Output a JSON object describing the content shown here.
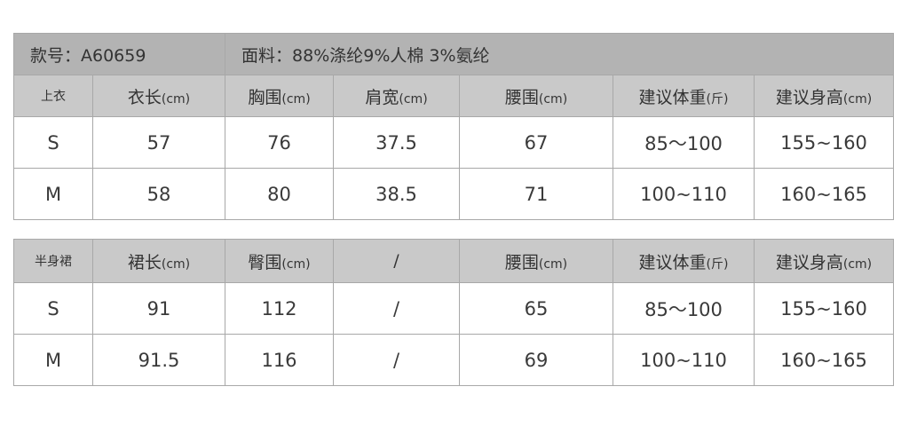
{
  "style_no": "款号：A60659",
  "fabric": "面料：88%涤纶9%人棉 3%氨纶",
  "top": {
    "label": "上衣",
    "headers": [
      {
        "name": "衣长",
        "unit": "(cm)"
      },
      {
        "name": "胸围",
        "unit": "(cm)"
      },
      {
        "name": "肩宽",
        "unit": "(cm)"
      },
      {
        "name": "腰围",
        "unit": "(cm)"
      },
      {
        "name": "建议体重",
        "unit": "(斤)"
      },
      {
        "name": "建议身高",
        "unit": "(cm)"
      }
    ],
    "rows": [
      [
        "S",
        "57",
        "76",
        "37.5",
        "67",
        "85～100",
        "155~160"
      ],
      [
        "M",
        "58",
        "80",
        "38.5",
        "71",
        "100~110",
        "160~165"
      ]
    ]
  },
  "skirt": {
    "label": "半身裙",
    "headers": [
      {
        "name": "裙长",
        "unit": "(cm)"
      },
      {
        "name": "臀围",
        "unit": "(cm)"
      },
      {
        "name": "/",
        "unit": ""
      },
      {
        "name": "腰围",
        "unit": "(cm)"
      },
      {
        "name": "建议体重",
        "unit": "(斤)"
      },
      {
        "name": "建议身高",
        "unit": "(cm)"
      }
    ],
    "rows": [
      [
        "S",
        "91",
        "112",
        "/",
        "65",
        "85～100",
        "155~160"
      ],
      [
        "M",
        "91.5",
        "116",
        "/",
        "69",
        "100~110",
        "160~165"
      ]
    ]
  }
}
